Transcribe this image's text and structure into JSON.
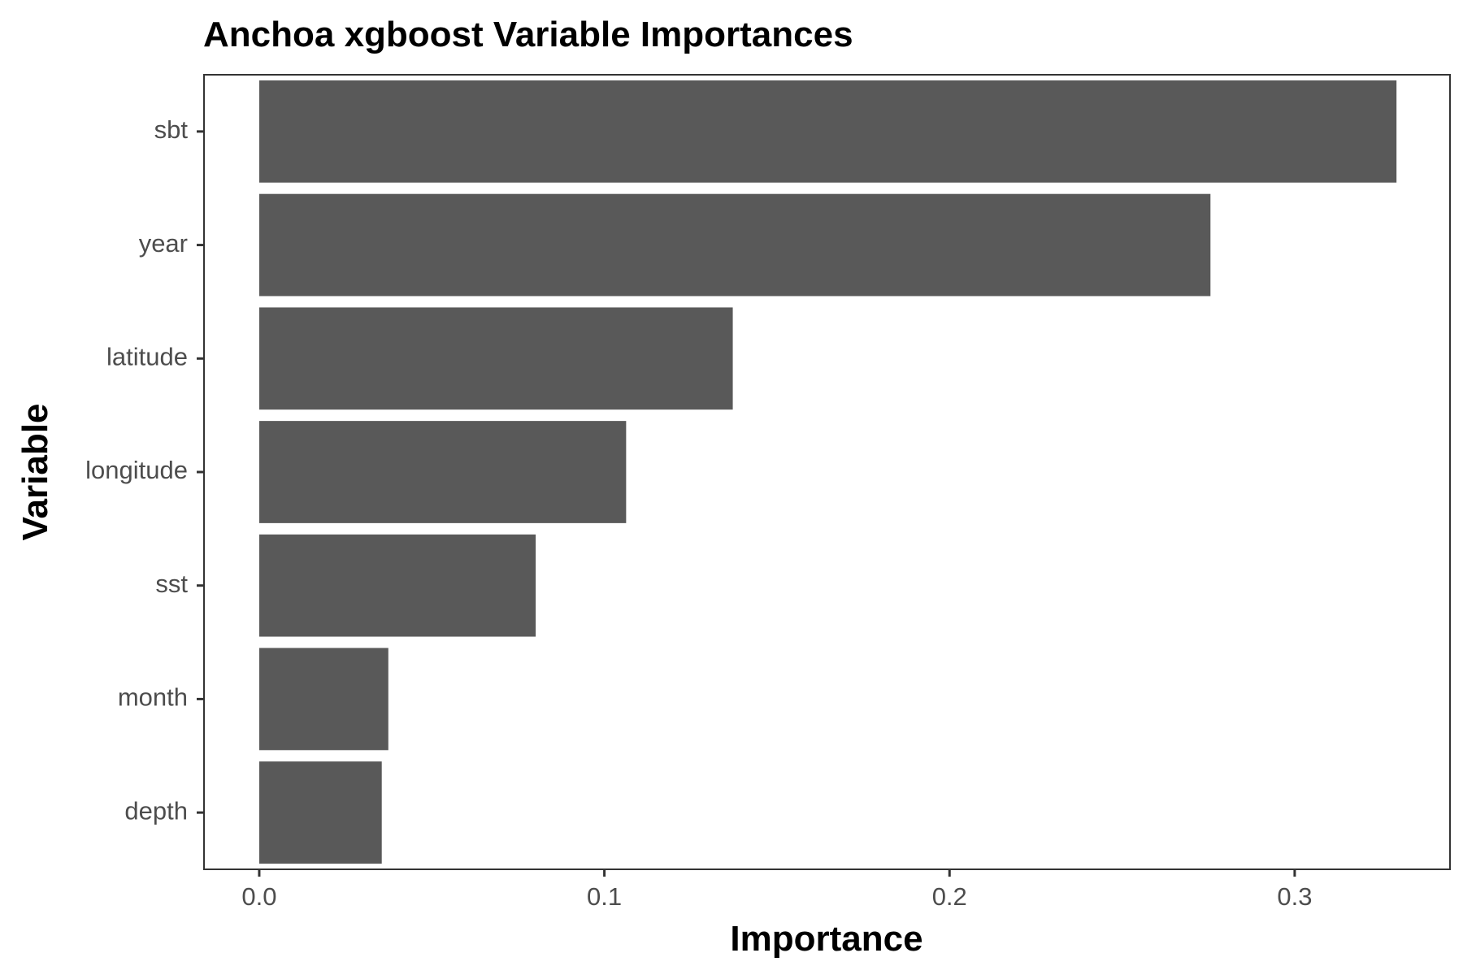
{
  "chart_data": {
    "type": "bar",
    "orientation": "horizontal",
    "title": "Anchoa xgboost Variable Importances",
    "xlabel": "Importance",
    "ylabel": "Variable",
    "categories": [
      "sbt",
      "year",
      "latitude",
      "longitude",
      "sst",
      "month",
      "depth"
    ],
    "values": [
      0.3295,
      0.2756,
      0.1372,
      0.1063,
      0.0801,
      0.0374,
      0.0355
    ],
    "xlim": [
      -0.016,
      0.345
    ],
    "xticks": [
      0.0,
      0.1,
      0.2,
      0.3
    ],
    "xtick_labels": [
      "0.0",
      "0.1",
      "0.2",
      "0.3"
    ],
    "grid": false,
    "legend": "none",
    "colors": {
      "bar": "#595959",
      "panel_border": "#333333",
      "tick_label": "#4d4d4d",
      "title": "#000000"
    }
  }
}
